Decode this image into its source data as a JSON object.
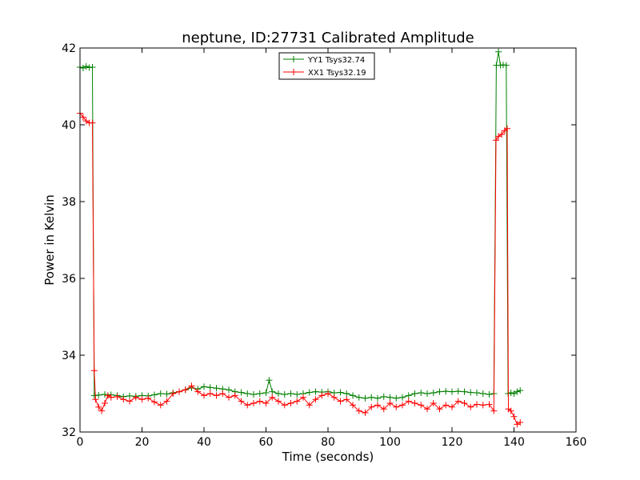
{
  "chart_data": {
    "type": "line",
    "title": "neptune, ID:27731 Calibrated Amplitude",
    "xlabel": "Time (seconds)",
    "ylabel": "Power in Kelvin",
    "xlim": [
      0,
      160
    ],
    "ylim": [
      32,
      42
    ],
    "xticks": [
      "0",
      "20",
      "40",
      "60",
      "80",
      "100",
      "120",
      "140",
      "160"
    ],
    "yticks": [
      "32",
      "34",
      "36",
      "38",
      "40",
      "42"
    ],
    "grid": false,
    "legend_position": "top-center",
    "marker": "plus",
    "series": [
      {
        "name": "YY1 Tsys32.74",
        "color": "#008000",
        "points": [
          [
            0.0,
            41.5
          ],
          [
            1.0,
            41.48
          ],
          [
            2.0,
            41.52
          ],
          [
            3.0,
            41.49
          ],
          [
            4.0,
            41.5
          ],
          [
            4.6,
            32.95
          ],
          [
            6.0,
            32.96
          ],
          [
            8.0,
            32.98
          ],
          [
            10.0,
            32.97
          ],
          [
            12.0,
            32.95
          ],
          [
            14.0,
            32.92
          ],
          [
            16.0,
            32.94
          ],
          [
            18.0,
            32.93
          ],
          [
            20.0,
            32.95
          ],
          [
            22.0,
            32.94
          ],
          [
            24.0,
            32.97
          ],
          [
            26.0,
            33.0
          ],
          [
            28.0,
            32.99
          ],
          [
            30.0,
            33.02
          ],
          [
            32.0,
            33.05
          ],
          [
            34.0,
            33.1
          ],
          [
            36.0,
            33.15
          ],
          [
            38.0,
            33.12
          ],
          [
            40.0,
            33.18
          ],
          [
            42.0,
            33.16
          ],
          [
            44.0,
            33.14
          ],
          [
            46.0,
            33.12
          ],
          [
            48.0,
            33.1
          ],
          [
            50.0,
            33.05
          ],
          [
            52.0,
            33.03
          ],
          [
            54.0,
            33.0
          ],
          [
            56.0,
            32.98
          ],
          [
            58.0,
            33.0
          ],
          [
            60.0,
            33.02
          ],
          [
            61.0,
            33.35
          ],
          [
            62.0,
            33.05
          ],
          [
            64.0,
            33.0
          ],
          [
            66.0,
            32.98
          ],
          [
            68.0,
            33.0
          ],
          [
            70.0,
            32.98
          ],
          [
            72.0,
            33.0
          ],
          [
            74.0,
            33.03
          ],
          [
            76.0,
            33.05
          ],
          [
            78.0,
            33.04
          ],
          [
            80.0,
            33.05
          ],
          [
            82.0,
            33.02
          ],
          [
            84.0,
            33.03
          ],
          [
            86.0,
            33.0
          ],
          [
            88.0,
            32.95
          ],
          [
            90.0,
            32.9
          ],
          [
            92.0,
            32.88
          ],
          [
            94.0,
            32.9
          ],
          [
            96.0,
            32.88
          ],
          [
            98.0,
            32.92
          ],
          [
            100.0,
            32.9
          ],
          [
            102.0,
            32.88
          ],
          [
            104.0,
            32.9
          ],
          [
            106.0,
            32.95
          ],
          [
            108.0,
            33.0
          ],
          [
            110.0,
            33.02
          ],
          [
            112.0,
            33.0
          ],
          [
            114.0,
            33.02
          ],
          [
            116.0,
            33.05
          ],
          [
            118.0,
            33.06
          ],
          [
            120.0,
            33.05
          ],
          [
            122.0,
            33.06
          ],
          [
            124.0,
            33.05
          ],
          [
            126.0,
            33.03
          ],
          [
            128.0,
            33.02
          ],
          [
            130.0,
            33.0
          ],
          [
            132.0,
            32.98
          ],
          [
            133.5,
            33.0
          ],
          [
            134.3,
            41.55
          ],
          [
            135.0,
            41.9
          ],
          [
            135.6,
            41.55
          ],
          [
            136.5,
            41.56
          ],
          [
            137.5,
            41.55
          ],
          [
            138.1,
            33.0
          ],
          [
            139.0,
            33.02
          ],
          [
            140.0,
            33.0
          ],
          [
            141.0,
            33.05
          ],
          [
            142.0,
            33.08
          ]
        ]
      },
      {
        "name": "XX1 Tsys32.19",
        "color": "#ff0000",
        "points": [
          [
            0.0,
            40.3
          ],
          [
            1.0,
            40.2
          ],
          [
            2.0,
            40.1
          ],
          [
            3.0,
            40.05
          ],
          [
            4.0,
            40.05
          ],
          [
            4.6,
            33.6
          ],
          [
            5.0,
            32.85
          ],
          [
            6.0,
            32.65
          ],
          [
            7.0,
            32.55
          ],
          [
            8.0,
            32.75
          ],
          [
            9.0,
            32.95
          ],
          [
            10.0,
            32.9
          ],
          [
            12.0,
            32.92
          ],
          [
            14.0,
            32.85
          ],
          [
            16.0,
            32.8
          ],
          [
            18.0,
            32.9
          ],
          [
            20.0,
            32.85
          ],
          [
            22.0,
            32.88
          ],
          [
            24.0,
            32.78
          ],
          [
            26.0,
            32.7
          ],
          [
            28.0,
            32.8
          ],
          [
            30.0,
            33.0
          ],
          [
            32.0,
            33.05
          ],
          [
            34.0,
            33.1
          ],
          [
            36.0,
            33.2
          ],
          [
            38.0,
            33.05
          ],
          [
            40.0,
            32.95
          ],
          [
            42.0,
            33.0
          ],
          [
            44.0,
            32.95
          ],
          [
            46.0,
            33.0
          ],
          [
            48.0,
            32.9
          ],
          [
            50.0,
            32.95
          ],
          [
            52.0,
            32.8
          ],
          [
            54.0,
            32.7
          ],
          [
            56.0,
            32.75
          ],
          [
            58.0,
            32.8
          ],
          [
            60.0,
            32.75
          ],
          [
            62.0,
            32.9
          ],
          [
            64.0,
            32.8
          ],
          [
            66.0,
            32.7
          ],
          [
            68.0,
            32.75
          ],
          [
            70.0,
            32.8
          ],
          [
            72.0,
            32.9
          ],
          [
            74.0,
            32.7
          ],
          [
            76.0,
            32.85
          ],
          [
            78.0,
            32.95
          ],
          [
            80.0,
            33.0
          ],
          [
            82.0,
            32.9
          ],
          [
            84.0,
            32.8
          ],
          [
            86.0,
            32.85
          ],
          [
            88.0,
            32.7
          ],
          [
            90.0,
            32.55
          ],
          [
            92.0,
            32.5
          ],
          [
            94.0,
            32.65
          ],
          [
            96.0,
            32.7
          ],
          [
            98.0,
            32.6
          ],
          [
            100.0,
            32.75
          ],
          [
            102.0,
            32.65
          ],
          [
            104.0,
            32.7
          ],
          [
            106.0,
            32.8
          ],
          [
            108.0,
            32.75
          ],
          [
            110.0,
            32.7
          ],
          [
            112.0,
            32.6
          ],
          [
            114.0,
            32.75
          ],
          [
            116.0,
            32.6
          ],
          [
            118.0,
            32.7
          ],
          [
            120.0,
            32.65
          ],
          [
            122.0,
            32.8
          ],
          [
            124.0,
            32.75
          ],
          [
            126.0,
            32.65
          ],
          [
            128.0,
            32.72
          ],
          [
            130.0,
            32.7
          ],
          [
            132.0,
            32.72
          ],
          [
            133.5,
            32.55
          ],
          [
            134.2,
            39.6
          ],
          [
            135.0,
            39.7
          ],
          [
            136.0,
            39.75
          ],
          [
            137.0,
            39.85
          ],
          [
            137.8,
            39.9
          ],
          [
            138.2,
            32.6
          ],
          [
            139.0,
            32.55
          ],
          [
            140.0,
            32.4
          ],
          [
            141.0,
            32.2
          ],
          [
            142.0,
            32.25
          ]
        ]
      }
    ]
  }
}
